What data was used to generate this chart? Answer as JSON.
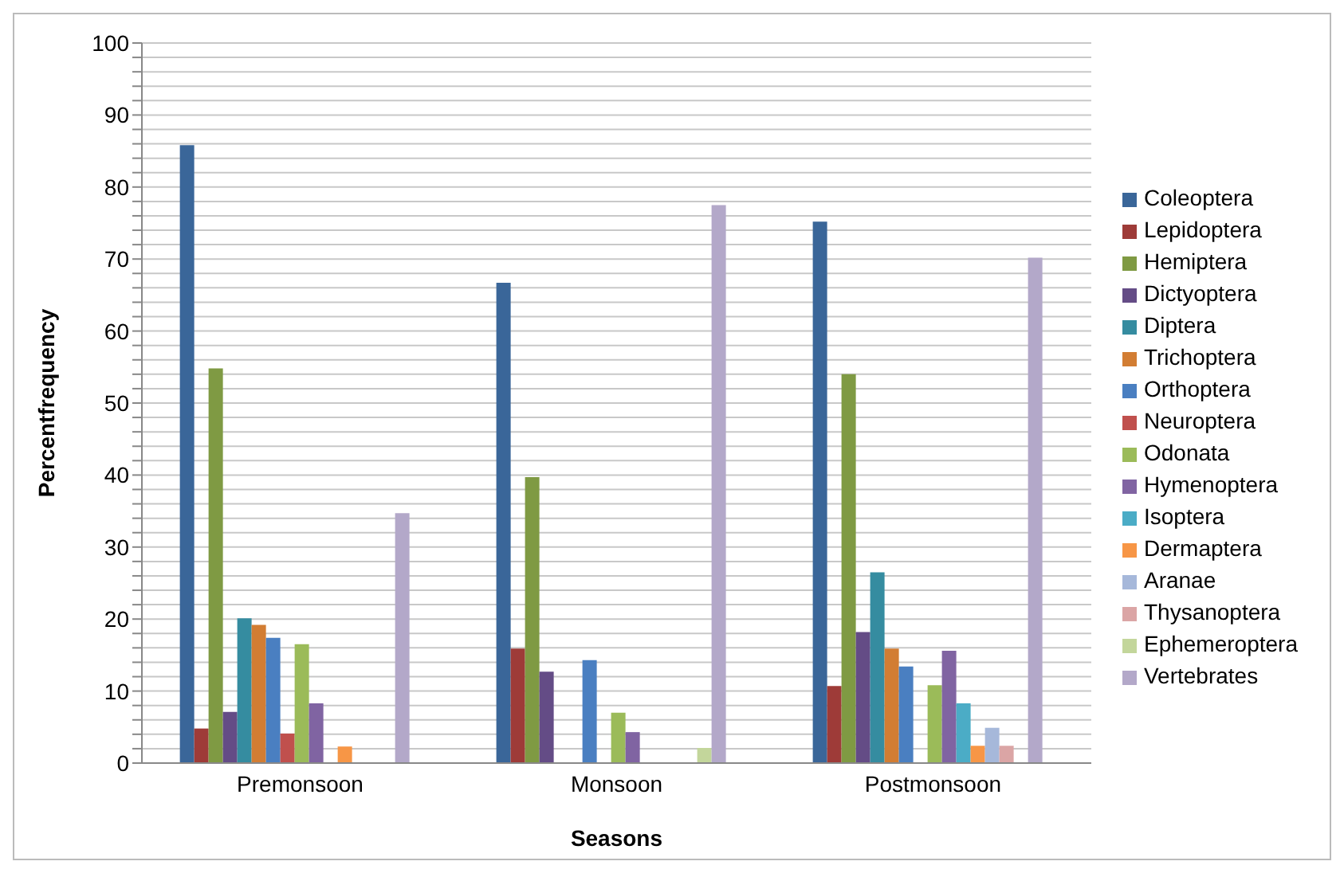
{
  "chart_data": {
    "type": "bar",
    "xlabel": "Seasons",
    "ylabel": "Percentfrequency",
    "categories": [
      "Premonsoon",
      "Monsoon",
      "Postmonsoon"
    ],
    "series": [
      {
        "name": "Coleoptera",
        "color": "#3a6699",
        "values": [
          85.8,
          66.7,
          75.2
        ]
      },
      {
        "name": "Lepidoptera",
        "color": "#9e3b38",
        "values": [
          4.8,
          15.9,
          10.7
        ]
      },
      {
        "name": "Hemiptera",
        "color": "#7f9a43",
        "values": [
          54.8,
          39.7,
          54.0
        ]
      },
      {
        "name": "Dictyoptera",
        "color": "#644c86",
        "values": [
          7.1,
          12.7,
          18.2
        ]
      },
      {
        "name": "Diptera",
        "color": "#358ca0",
        "values": [
          20.1,
          null,
          26.5
        ]
      },
      {
        "name": "Trichoptera",
        "color": "#d27d33",
        "values": [
          19.2,
          null,
          15.9
        ]
      },
      {
        "name": "Orthoptera",
        "color": "#4a7fc1",
        "values": [
          17.4,
          14.3,
          13.4
        ]
      },
      {
        "name": "Neuroptera",
        "color": "#c0504d",
        "values": [
          4.1,
          null,
          null
        ]
      },
      {
        "name": "Odonata",
        "color": "#9bbb59",
        "values": [
          16.5,
          7.0,
          10.8
        ]
      },
      {
        "name": "Hymenoptera",
        "color": "#8064a2",
        "values": [
          8.3,
          4.3,
          15.6
        ]
      },
      {
        "name": "Isoptera",
        "color": "#4bacc6",
        "values": [
          null,
          null,
          8.3
        ]
      },
      {
        "name": "Dermaptera",
        "color": "#f79646",
        "values": [
          2.3,
          null,
          2.4
        ]
      },
      {
        "name": "Aranae",
        "color": "#a6b8da",
        "values": [
          null,
          null,
          4.9
        ]
      },
      {
        "name": "Thysanoptera",
        "color": "#dba5a5",
        "values": [
          null,
          null,
          2.4
        ]
      },
      {
        "name": "Ephemeroptera",
        "color": "#c3d69b",
        "values": [
          null,
          2.1,
          null
        ]
      },
      {
        "name": "Vertebrates",
        "color": "#b3a8c9",
        "values": [
          34.7,
          77.5,
          70.2
        ]
      }
    ],
    "ylim": [
      0,
      100
    ],
    "yticks": [
      0,
      {
        "value": 2,
        "label": null
      },
      {
        "value": 4,
        "label": null
      },
      {
        "value": 6,
        "label": null
      },
      {
        "value": 8,
        "label": null
      },
      10,
      {
        "value": 12,
        "label": null
      },
      {
        "value": 14,
        "label": null
      },
      {
        "value": 16,
        "label": null
      },
      {
        "value": 18,
        "label": null
      },
      20,
      {
        "value": 22,
        "label": null
      },
      {
        "value": 24,
        "label": null
      },
      {
        "value": 26,
        "label": null
      },
      {
        "value": 28,
        "label": null
      },
      30,
      {
        "value": 32,
        "label": null
      },
      {
        "value": 34,
        "label": null
      },
      {
        "value": 36,
        "label": null
      },
      {
        "value": 38,
        "label": null
      },
      40,
      {
        "value": 42,
        "label": null
      },
      {
        "value": 44,
        "label": null
      },
      {
        "value": 46,
        "label": null
      },
      {
        "value": 48,
        "label": null
      },
      50,
      {
        "value": 52,
        "label": null
      },
      {
        "value": 54,
        "label": null
      },
      {
        "value": 56,
        "label": null
      },
      {
        "value": 58,
        "label": null
      },
      60,
      {
        "value": 62,
        "label": null
      },
      {
        "value": 64,
        "label": null
      },
      {
        "value": 66,
        "label": null
      },
      {
        "value": 68,
        "label": null
      },
      70,
      {
        "value": 72,
        "label": null
      },
      {
        "value": 74,
        "label": null
      },
      {
        "value": 76,
        "label": null
      },
      {
        "value": 78,
        "label": null
      },
      80,
      {
        "value": 82,
        "label": null
      },
      {
        "value": 84,
        "label": null
      },
      {
        "value": 86,
        "label": null
      },
      {
        "value": 88,
        "label": null
      },
      90,
      {
        "value": 92,
        "label": null
      },
      {
        "value": 94,
        "label": null
      },
      {
        "value": 96,
        "label": null
      },
      {
        "value": 98,
        "label": null
      },
      100
    ],
    "grid": "y",
    "legend": "right"
  }
}
